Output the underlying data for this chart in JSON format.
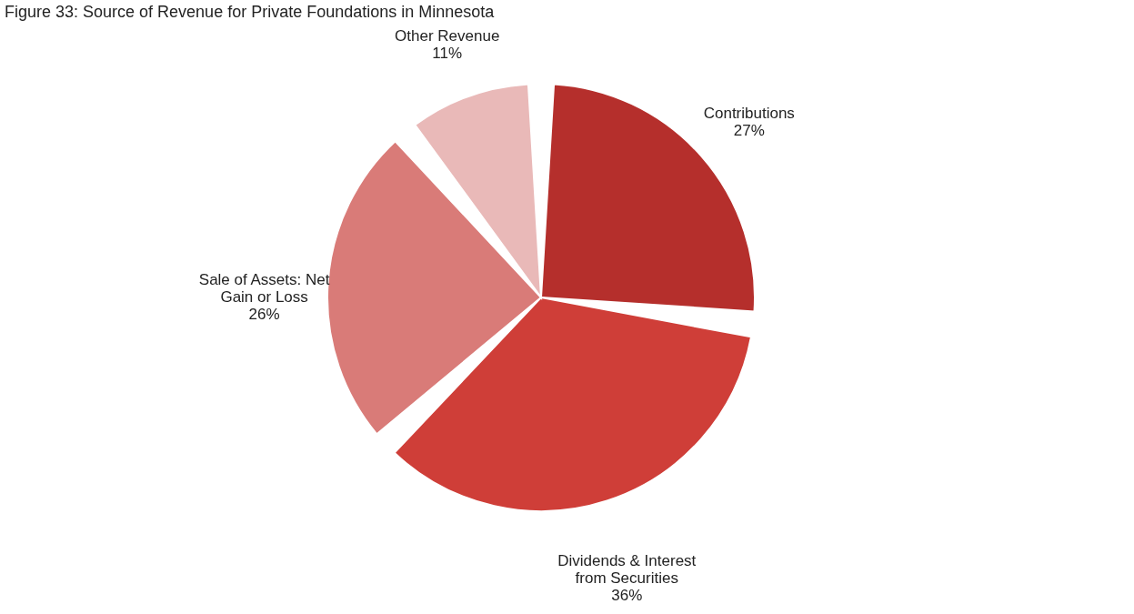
{
  "chart_data": {
    "type": "pie",
    "title": "Figure 33: Source of Revenue for Private Foundations in Minnesota",
    "categories": [
      "Contributions",
      "Dividends & Interest from Securities",
      "Sale of Assets: Net Gain or Loss",
      "Other Revenue"
    ],
    "values": [
      27,
      36,
      26,
      11
    ],
    "colors": [
      "#b52f2c",
      "#cf3e38",
      "#d97b78",
      "#e9b9b8"
    ],
    "value_labels": [
      "27%",
      "36%",
      "26%",
      "11%"
    ],
    "legend": false
  }
}
